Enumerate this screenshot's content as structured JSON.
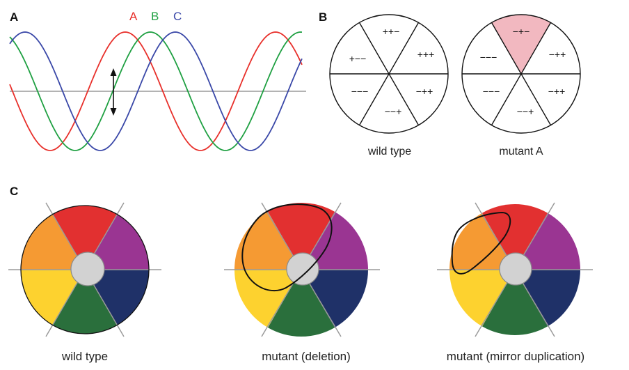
{
  "panels": {
    "a": {
      "label": "A",
      "curves": [
        {
          "name": "A",
          "color": "#e8302b"
        },
        {
          "name": "B",
          "color": "#1fa042"
        },
        {
          "name": "C",
          "color": "#3a48a8"
        }
      ],
      "baseline_color": "#9a9a9a"
    },
    "b": {
      "label": "B",
      "discs": [
        {
          "caption": "wild type",
          "segments": [
            "++−",
            "+++",
            "−++",
            "−−+",
            "−−−",
            "+−−"
          ]
        },
        {
          "caption": "mutant A",
          "segments": [
            "−+−",
            "−++",
            "−++",
            "−−+",
            "−−−",
            "−−−"
          ],
          "highlight_color": "#f2b8c0"
        }
      ]
    },
    "c": {
      "label": "C",
      "colors": [
        "#e23030",
        "#9a3592",
        "#1f3168",
        "#2a6f3c",
        "#fdd22f",
        "#f59a33"
      ],
      "center_color": "#d2d2d2",
      "captions": [
        "wild type",
        "mutant (deletion)",
        "mutant (mirror duplication)"
      ]
    }
  }
}
